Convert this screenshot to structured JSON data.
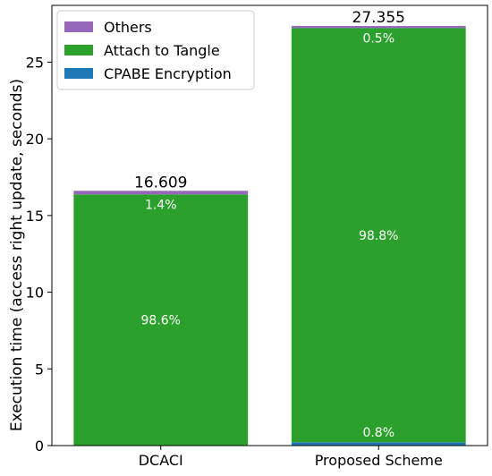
{
  "chart_data": {
    "type": "bar",
    "stacked": true,
    "categories": [
      "DCACI",
      "Proposed Scheme"
    ],
    "series": [
      {
        "name": "CPABE Encryption",
        "color": "#1f77b4",
        "values": [
          0.0,
          0.219
        ]
      },
      {
        "name": "Attach to Tangle",
        "color": "#2ca02c",
        "values": [
          16.377,
          27.0
        ]
      },
      {
        "name": "Others",
        "color": "#9467bd",
        "values": [
          0.232,
          0.136
        ]
      }
    ],
    "totals": [
      "16.609",
      "27.355"
    ],
    "percent_labels": [
      [
        {
          "series": "Attach to Tangle",
          "text": "98.6%"
        },
        {
          "series": "Others",
          "text": "1.4%"
        }
      ],
      [
        {
          "series": "CPABE Encryption",
          "text": "0.8%"
        },
        {
          "series": "Attach to Tangle",
          "text": "98.8%"
        },
        {
          "series": "Others",
          "text": "0.5%"
        }
      ]
    ],
    "title": "",
    "xlabel": "",
    "ylabel": "Execution time (access right update, seconds)",
    "ylim": [
      0,
      28.7
    ],
    "yticks": [
      0,
      5,
      10,
      15,
      20,
      25
    ],
    "grid": false,
    "legend_position": "top-left",
    "legend_order": [
      "Others",
      "Attach to Tangle",
      "CPABE Encryption"
    ]
  }
}
